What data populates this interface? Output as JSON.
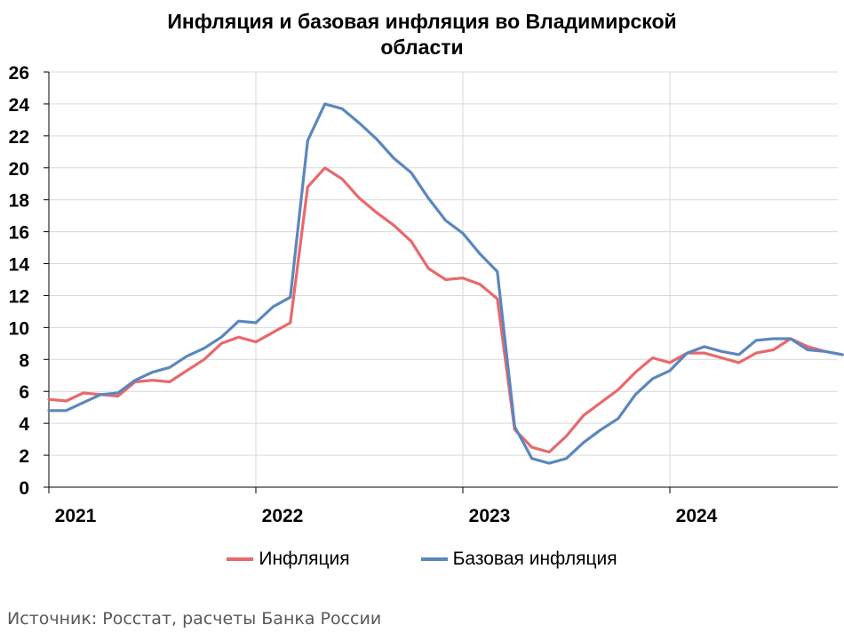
{
  "chart_data": {
    "type": "line",
    "title_lines": [
      "Инфляция и базовая инфляция во Владимирской",
      "области"
    ],
    "ylim": [
      0,
      26
    ],
    "yticks": [
      0,
      2,
      4,
      6,
      8,
      10,
      12,
      14,
      16,
      18,
      20,
      22,
      24,
      26
    ],
    "xlabels": [
      "2021",
      "2022",
      "2023",
      "2024"
    ],
    "grid": true,
    "legend_position": "bottom",
    "x_start": "2021-01",
    "x_end": "2024-10",
    "series": [
      {
        "name": "Инфляция",
        "color": "#e8696c",
        "values": [
          5.5,
          5.4,
          5.9,
          5.8,
          5.7,
          6.6,
          6.7,
          6.6,
          7.3,
          8.0,
          9.0,
          9.4,
          9.1,
          9.7,
          10.3,
          18.8,
          20.0,
          19.3,
          18.1,
          17.2,
          16.4,
          15.4,
          13.7,
          13.0,
          13.1,
          12.7,
          11.8,
          3.6,
          2.5,
          2.2,
          3.2,
          4.5,
          5.3,
          6.1,
          7.2,
          8.1,
          7.8,
          8.4,
          8.4,
          8.1,
          7.8,
          8.4,
          8.6,
          9.3,
          8.8,
          8.5,
          8.3
        ],
        "x_offset": 0
      },
      {
        "name": "Базовая инфляция",
        "color": "#5b87bd",
        "values": [
          4.8,
          4.8,
          5.3,
          5.8,
          5.9,
          6.7,
          7.2,
          7.5,
          8.2,
          8.7,
          9.4,
          10.4,
          10.3,
          11.3,
          11.9,
          21.7,
          24.0,
          23.7,
          22.8,
          21.8,
          20.6,
          19.7,
          18.1,
          16.7,
          15.9,
          14.6,
          13.5,
          3.8,
          1.8,
          1.5,
          1.8,
          2.8,
          3.6,
          4.3,
          5.8,
          6.8,
          7.3,
          8.4,
          8.8,
          8.5,
          8.3,
          9.2,
          9.3,
          9.3,
          8.6,
          8.5,
          8.3
        ],
        "x_offset": 0
      }
    ]
  },
  "source": "Источник: Росстат, расчеты Банка России"
}
